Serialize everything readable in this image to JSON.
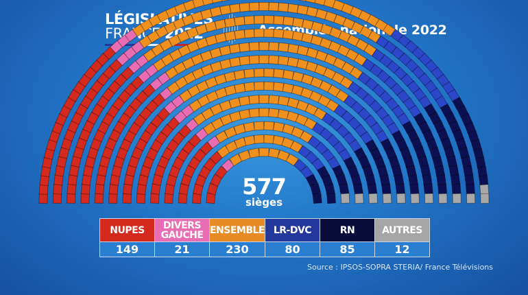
{
  "header": {
    "logo_line1": "LÉGISLATIVES",
    "logo_line2a": "FRANCE",
    "logo_line2b": "2022",
    "title": "Assemblée nationale 2022"
  },
  "chart_data": {
    "type": "parliament",
    "total": 577,
    "total_label": "sièges",
    "parties": [
      {
        "name": "NUPES",
        "seats": 149,
        "color": "#d42a1e"
      },
      {
        "name": "DIVERS GAUCHE",
        "seats": 21,
        "color": "#e96db3"
      },
      {
        "name": "ENSEMBLE",
        "seats": 230,
        "color": "#f0901e"
      },
      {
        "name": "LR-DVC",
        "seats": 80,
        "color": "#2b46c8"
      },
      {
        "name": "RN",
        "seats": 85,
        "color": "#0c1050"
      },
      {
        "name": "AUTRES",
        "seats": 12,
        "color": "#a8a8a8"
      }
    ]
  },
  "source": "Source : IPSOS-SOPRA STERIA/ France Télévisions"
}
